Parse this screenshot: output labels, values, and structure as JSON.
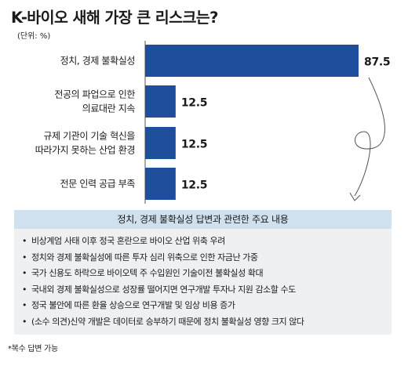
{
  "title": "K-바이오 새해 가장 큰 리스크는?",
  "unit": "(단위: %)",
  "colors": {
    "bar": "#1f4f9c",
    "panel_header": "#cfe0ee",
    "panel_body": "#eef0f2",
    "arrow": "#555555"
  },
  "chart_data": {
    "type": "bar",
    "orientation": "horizontal",
    "categories": [
      [
        "정치, 경제 불확실성"
      ],
      [
        "전공의 파업으로 인한",
        "의료대란 지속"
      ],
      [
        "규제 기관이 기술 혁신을",
        "따라가지 못하는 산업 환경"
      ],
      [
        "전문 인력 공급 부족"
      ]
    ],
    "values": [
      87.5,
      12.5,
      12.5,
      12.5
    ],
    "value_labels": [
      "87.5",
      "12.5",
      "12.5",
      "12.5"
    ],
    "xlim": [
      0,
      87.5
    ],
    "grid": false,
    "legend": "none"
  },
  "panel": {
    "title": "정치, 경제 불확실성 답변과 관련한 주요 내용",
    "items": [
      "비상계엄 사태 이후 정국 혼란으로 바이오 산업 위축 우려",
      "정치와 경제 불확실성에 따른 투자 심리 위축으로 인한 자금난 가중",
      "국가 신용도 하락으로 바이오텍 주 수입원인 기술이전 불확실성 확대",
      "국내외 경제 불확실성으로 성장률 떨어지면 연구개발 투자나 지원 감소할 수도",
      "정국 불안에 따른 환율 상승으로 연구개발 및 임상 비용 증가",
      "(소수 의견)신약 개발은 데이터로 승부하기 때문에 정치 불확실성 영향 크지 않다"
    ]
  },
  "footnote": "*복수 답변 가능"
}
